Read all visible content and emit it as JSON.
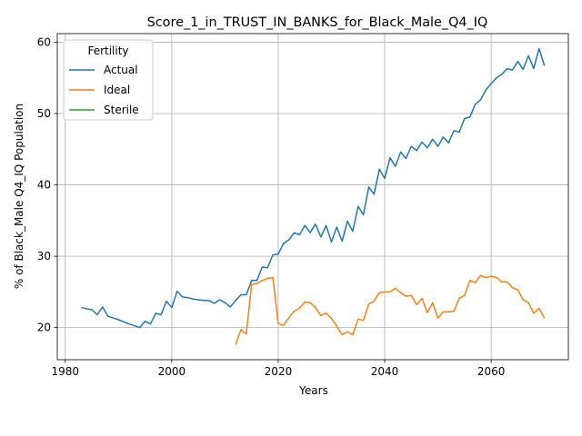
{
  "chart_data": {
    "type": "line",
    "title": "Score_1_in_TRUST_IN_BANKS_for_Black_Male_Q4_IQ",
    "xlabel": "Years",
    "ylabel": "% of Black_Male Q4_IQ Population",
    "xlim": [
      1978.5,
      2074.5
    ],
    "ylim": [
      15.5,
      61.2
    ],
    "xticks": [
      1980,
      2000,
      2020,
      2040,
      2060
    ],
    "yticks": [
      20,
      30,
      40,
      50,
      60
    ],
    "grid": true,
    "legend": {
      "title": "Fertility",
      "position": "upper-left"
    },
    "series": [
      {
        "name": "Actual",
        "color": "#1f77b4",
        "x": [
          1983,
          1985,
          1986,
          1987,
          1988,
          1990,
          1992,
          1994,
          1995,
          1996,
          1997,
          1998,
          1999,
          2000,
          2001,
          2002,
          2003,
          2004,
          2005,
          2006,
          2007,
          2008,
          2009,
          2010,
          2011,
          2012,
          2013,
          2014,
          2015,
          2016,
          2017,
          2018,
          2019,
          2020,
          2021,
          2022,
          2023,
          2024,
          2025,
          2026,
          2027,
          2028,
          2029,
          2030,
          2031,
          2032,
          2033,
          2034,
          2035,
          2036,
          2037,
          2038,
          2039,
          2040,
          2041,
          2042,
          2043,
          2044,
          2045,
          2046,
          2047,
          2048,
          2049,
          2050,
          2051,
          2052,
          2053,
          2054,
          2055,
          2056,
          2057,
          2058,
          2059,
          2060,
          2061,
          2062,
          2063,
          2064,
          2065,
          2066,
          2067,
          2068,
          2069,
          2070
        ],
        "y": [
          22.8,
          22.5,
          21.8,
          22.9,
          21.6,
          21.1,
          20.5,
          20.0,
          20.9,
          20.5,
          22.0,
          21.8,
          23.7,
          22.8,
          25.1,
          24.3,
          24.2,
          24.0,
          23.9,
          23.8,
          23.8,
          23.4,
          23.9,
          23.5,
          22.9,
          23.8,
          24.6,
          24.6,
          26.6,
          26.6,
          28.5,
          28.4,
          30.2,
          30.3,
          31.8,
          32.3,
          33.3,
          33.0,
          34.3,
          33.3,
          34.5,
          32.7,
          34.3,
          32.0,
          34.1,
          32.1,
          34.9,
          33.5,
          37.0,
          35.8,
          39.7,
          38.7,
          42.2,
          40.9,
          43.8,
          42.6,
          44.6,
          43.7,
          45.4,
          44.8,
          46.0,
          45.2,
          46.4,
          45.4,
          46.7,
          45.9,
          47.6,
          47.4,
          49.3,
          49.5,
          51.3,
          51.9,
          53.3,
          54.2,
          55.0,
          55.5,
          56.3,
          56.1,
          57.3,
          56.2,
          58.1,
          56.3,
          59.1,
          56.7
        ]
      },
      {
        "name": "Ideal",
        "color": "#ff7f0e",
        "x": [
          2012,
          2013,
          2014,
          2015,
          2016,
          2017,
          2018,
          2019,
          2020,
          2021,
          2022,
          2023,
          2024,
          2025,
          2026,
          2027,
          2028,
          2029,
          2030,
          2031,
          2032,
          2033,
          2034,
          2035,
          2036,
          2037,
          2038,
          2039,
          2040,
          2041,
          2042,
          2043,
          2044,
          2045,
          2046,
          2047,
          2048,
          2049,
          2050,
          2051,
          2052,
          2053,
          2054,
          2055,
          2056,
          2057,
          2058,
          2059,
          2060,
          2061,
          2062,
          2063,
          2064,
          2065,
          2066,
          2067,
          2068,
          2069,
          2070
        ],
        "y": [
          17.6,
          19.7,
          19.1,
          26.0,
          26.2,
          26.6,
          26.9,
          27.0,
          20.6,
          20.3,
          21.4,
          22.3,
          22.7,
          23.6,
          23.5,
          22.8,
          21.7,
          22.0,
          21.3,
          20.2,
          19.0,
          19.4,
          19.0,
          21.2,
          21.0,
          23.3,
          23.7,
          24.9,
          25.0,
          25.0,
          25.5,
          24.9,
          24.4,
          24.5,
          23.2,
          24.1,
          22.1,
          23.5,
          21.3,
          22.2,
          22.2,
          22.3,
          24.1,
          24.5,
          26.6,
          26.3,
          27.3,
          27.0,
          27.2,
          27.0,
          26.4,
          26.4,
          25.6,
          25.3,
          23.9,
          23.5,
          22.0,
          22.7,
          21.3
        ]
      },
      {
        "name": "Sterile",
        "color": "#2ca02c",
        "x": [],
        "y": []
      }
    ]
  }
}
